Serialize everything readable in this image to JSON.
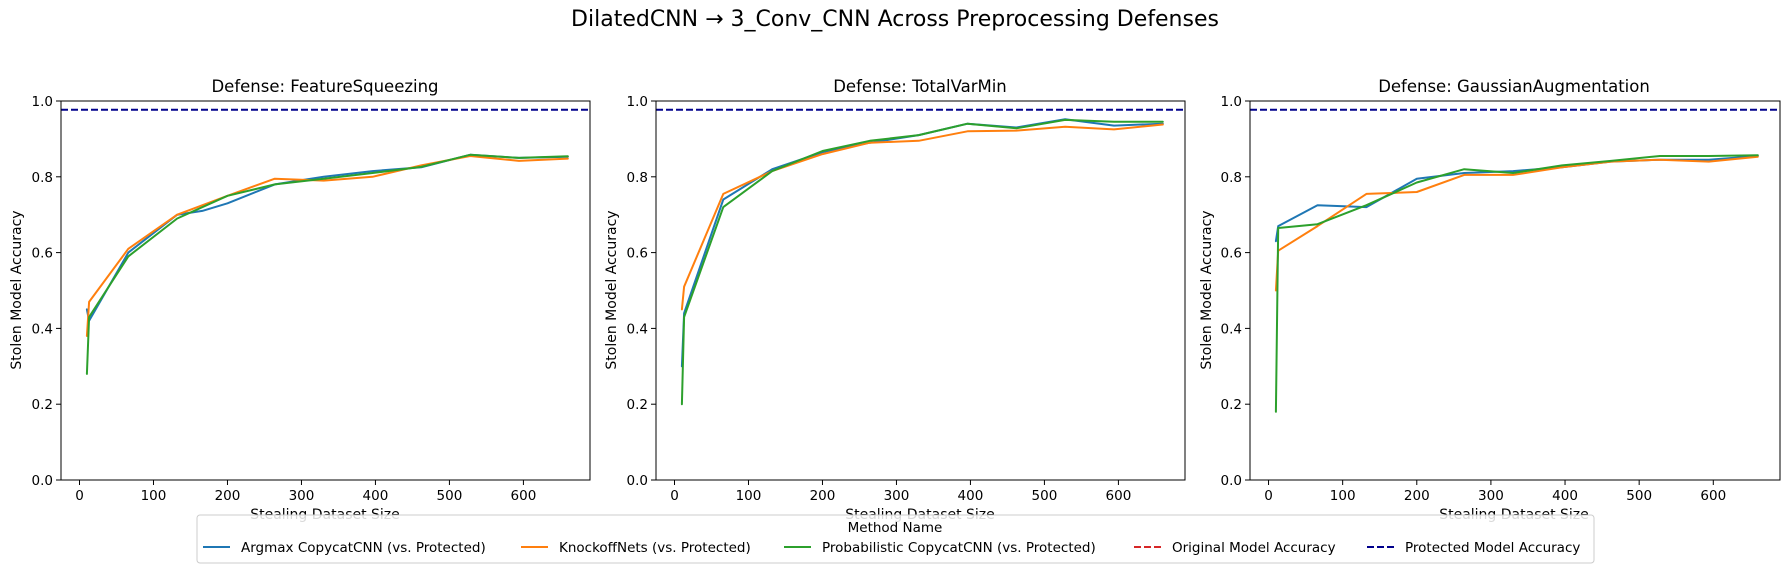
{
  "figure": {
    "title": "DilatedCNN → 3_Conv_CNN Across Preprocessing Defenses",
    "legend_title": "Method Name",
    "legend_placement": "bottom-center",
    "legend": [
      {
        "label": "Argmax CopycatCNN (vs. Protected)",
        "color": "#1f77b4",
        "style": "solid"
      },
      {
        "label": "KnockoffNets (vs. Protected)",
        "color": "#ff7f0e",
        "style": "solid"
      },
      {
        "label": "Probabilistic CopycatCNN (vs. Protected)",
        "color": "#2ca02c",
        "style": "solid"
      },
      {
        "label": "Original Model Accuracy",
        "color": "#d62728",
        "style": "dashed"
      },
      {
        "label": "Protected Model Accuracy",
        "color": "#00008b",
        "style": "dashed"
      }
    ]
  },
  "chart_data": [
    {
      "type": "line",
      "title": "Defense: FeatureSqueezing",
      "xlabel": "Stealing Dataset Size",
      "ylabel": "Stolen Model Accuracy",
      "xlim": [
        -25,
        690
      ],
      "ylim": [
        0,
        1
      ],
      "xticks": [
        0,
        100,
        200,
        300,
        400,
        500,
        600
      ],
      "yticks": [
        0.0,
        0.2,
        0.4,
        0.6,
        0.8,
        1.0
      ],
      "grid": false,
      "hlines": [
        {
          "name": "Protected Model Accuracy",
          "y": 0.977,
          "color": "#00008b"
        }
      ],
      "series": [
        {
          "name": "Argmax CopycatCNN (vs. Protected)",
          "color": "#1f77b4",
          "x": [
            10,
            13,
            66,
            132,
            166,
            200,
            264,
            330,
            396,
            462,
            528,
            594,
            660
          ],
          "y": [
            0.45,
            0.42,
            0.6,
            0.7,
            0.71,
            0.73,
            0.78,
            0.8,
            0.815,
            0.825,
            0.858,
            0.85,
            0.853
          ]
        },
        {
          "name": "KnockoffNets (vs. Protected)",
          "color": "#ff7f0e",
          "x": [
            10,
            13,
            66,
            132,
            200,
            264,
            330,
            396,
            462,
            528,
            594,
            660
          ],
          "y": [
            0.38,
            0.47,
            0.61,
            0.7,
            0.75,
            0.795,
            0.79,
            0.8,
            0.83,
            0.855,
            0.842,
            0.848
          ]
        },
        {
          "name": "Probabilistic CopycatCNN (vs. Protected)",
          "color": "#2ca02c",
          "x": [
            10,
            13,
            66,
            132,
            200,
            264,
            330,
            396,
            462,
            528,
            594,
            660
          ],
          "y": [
            0.28,
            0.43,
            0.59,
            0.69,
            0.75,
            0.78,
            0.795,
            0.81,
            0.826,
            0.858,
            0.85,
            0.854
          ]
        }
      ]
    },
    {
      "type": "line",
      "title": "Defense: TotalVarMin",
      "xlabel": "Stealing Dataset Size",
      "ylabel": "Stolen Model Accuracy",
      "xlim": [
        -25,
        690
      ],
      "ylim": [
        0,
        1
      ],
      "xticks": [
        0,
        100,
        200,
        300,
        400,
        500,
        600
      ],
      "yticks": [
        0.0,
        0.2,
        0.4,
        0.6,
        0.8,
        1.0
      ],
      "grid": false,
      "hlines": [
        {
          "name": "Protected Model Accuracy",
          "y": 0.977,
          "color": "#00008b"
        }
      ],
      "series": [
        {
          "name": "Argmax CopycatCNN (vs. Protected)",
          "color": "#1f77b4",
          "x": [
            10,
            13,
            66,
            132,
            200,
            264,
            330,
            396,
            462,
            528,
            594,
            660
          ],
          "y": [
            0.3,
            0.44,
            0.74,
            0.82,
            0.865,
            0.89,
            0.91,
            0.94,
            0.93,
            0.952,
            0.935,
            0.94
          ]
        },
        {
          "name": "KnockoffNets (vs. Protected)",
          "color": "#ff7f0e",
          "x": [
            10,
            13,
            66,
            132,
            200,
            264,
            330,
            396,
            462,
            528,
            594,
            660
          ],
          "y": [
            0.45,
            0.51,
            0.755,
            0.815,
            0.86,
            0.89,
            0.895,
            0.92,
            0.922,
            0.932,
            0.925,
            0.938
          ]
        },
        {
          "name": "Probabilistic CopycatCNN (vs. Protected)",
          "color": "#2ca02c",
          "x": [
            10,
            13,
            66,
            132,
            200,
            264,
            330,
            396,
            462,
            528,
            594,
            660
          ],
          "y": [
            0.2,
            0.43,
            0.72,
            0.815,
            0.868,
            0.895,
            0.91,
            0.94,
            0.928,
            0.95,
            0.945,
            0.945
          ]
        }
      ]
    },
    {
      "type": "line",
      "title": "Defense: GaussianAugmentation",
      "xlabel": "Stealing Dataset Size",
      "ylabel": "Stolen Model Accuracy",
      "xlim": [
        -25,
        690
      ],
      "ylim": [
        0,
        1
      ],
      "xticks": [
        0,
        100,
        200,
        300,
        400,
        500,
        600
      ],
      "yticks": [
        0.0,
        0.2,
        0.4,
        0.6,
        0.8,
        1.0
      ],
      "grid": false,
      "hlines": [
        {
          "name": "Protected Model Accuracy",
          "y": 0.977,
          "color": "#00008b"
        }
      ],
      "series": [
        {
          "name": "Argmax CopycatCNN (vs. Protected)",
          "color": "#1f77b4",
          "x": [
            10,
            13,
            66,
            132,
            200,
            264,
            330,
            396,
            462,
            528,
            594,
            660
          ],
          "y": [
            0.63,
            0.67,
            0.725,
            0.72,
            0.795,
            0.81,
            0.815,
            0.825,
            0.84,
            0.845,
            0.845,
            0.855
          ]
        },
        {
          "name": "KnockoffNets (vs. Protected)",
          "color": "#ff7f0e",
          "x": [
            10,
            13,
            66,
            132,
            200,
            264,
            330,
            396,
            462,
            528,
            594,
            660
          ],
          "y": [
            0.5,
            0.605,
            0.67,
            0.755,
            0.76,
            0.805,
            0.805,
            0.825,
            0.84,
            0.845,
            0.84,
            0.853
          ]
        },
        {
          "name": "Probabilistic CopycatCNN (vs. Protected)",
          "color": "#2ca02c",
          "x": [
            10,
            13,
            66,
            132,
            200,
            264,
            330,
            396,
            462,
            528,
            594,
            660
          ],
          "y": [
            0.18,
            0.665,
            0.675,
            0.725,
            0.785,
            0.82,
            0.81,
            0.83,
            0.842,
            0.855,
            0.855,
            0.857
          ]
        }
      ]
    }
  ]
}
